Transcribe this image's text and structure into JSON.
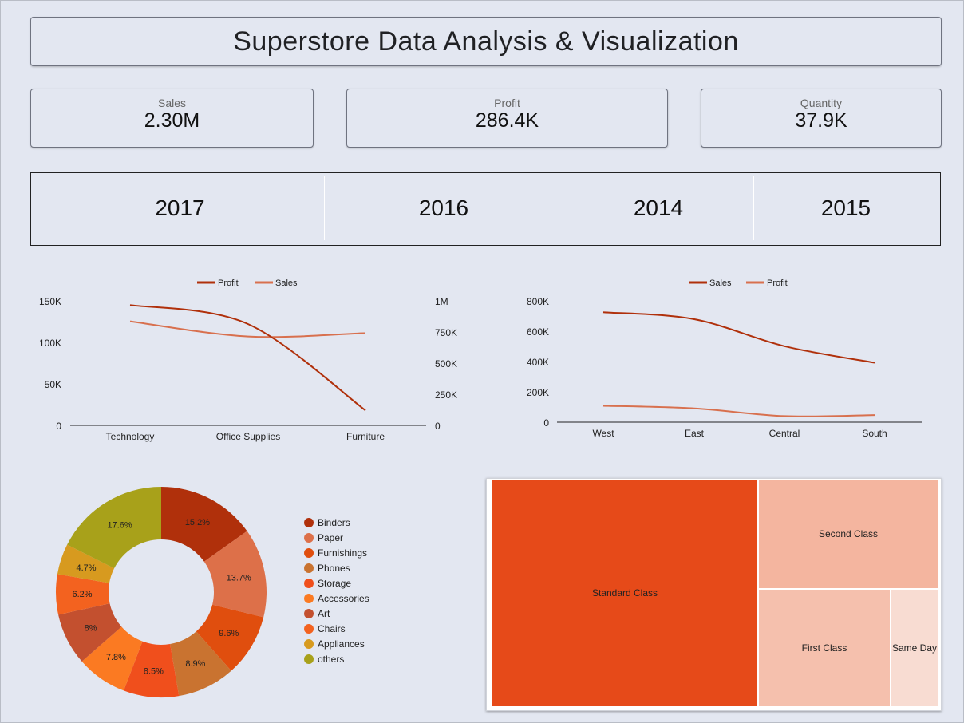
{
  "title": "Superstore Data Analysis & Visualization",
  "kpis": [
    {
      "label": "Sales",
      "value": "2.30M"
    },
    {
      "label": "Profit",
      "value": "286.4K"
    },
    {
      "label": "Quantity",
      "value": "37.9K"
    }
  ],
  "years": [
    "2017",
    "2016",
    "2014",
    "2015"
  ],
  "colors": {
    "profit_line": "#b0300b",
    "sales_line": "#d8704e",
    "background": "#e3e7f1"
  },
  "chart_data": [
    {
      "type": "line",
      "categories": [
        "Technology",
        "Office Supplies",
        "Furniture"
      ],
      "series": [
        {
          "name": "Profit",
          "axis": "left",
          "values": [
            145000,
            122000,
            18000
          ]
        },
        {
          "name": "Sales",
          "axis": "right",
          "values": [
            836000,
            714000,
            741000
          ]
        }
      ],
      "y_left": {
        "ticks": [
          "150K",
          "100K",
          "50K",
          "0"
        ],
        "range": [
          0,
          150000
        ]
      },
      "y_right": {
        "ticks": [
          "1M",
          "750K",
          "500K",
          "250K",
          "0"
        ],
        "range": [
          0,
          1000000
        ]
      },
      "legend": "top-center"
    },
    {
      "type": "line",
      "categories": [
        "West",
        "East",
        "Central",
        "South"
      ],
      "series": [
        {
          "name": "Sales",
          "values": [
            725000,
            679000,
            501000,
            392000
          ]
        },
        {
          "name": "Profit",
          "values": [
            108000,
            91000,
            40000,
            47000
          ]
        }
      ],
      "y": {
        "ticks": [
          "800K",
          "600K",
          "400K",
          "200K",
          "0"
        ],
        "range": [
          0,
          800000
        ]
      },
      "legend": "top-center"
    },
    {
      "type": "pie",
      "donut": true,
      "slices": [
        {
          "label": "Binders",
          "value": 15.2,
          "text": "15.2%",
          "color": "#b0300b"
        },
        {
          "label": "Paper",
          "value": 13.7,
          "text": "13.7%",
          "color": "#dd7049"
        },
        {
          "label": "Furnishings",
          "value": 9.6,
          "text": "9.6%",
          "color": "#e04e0e"
        },
        {
          "label": "Phones",
          "value": 8.9,
          "text": "8.9%",
          "color": "#c97330"
        },
        {
          "label": "Storage",
          "value": 8.5,
          "text": "8.5%",
          "color": "#f04f1c"
        },
        {
          "label": "Accessories",
          "value": 7.8,
          "text": "7.8%",
          "color": "#fb7a22"
        },
        {
          "label": "Art",
          "value": 8.0,
          "text": "8%",
          "color": "#c3502f"
        },
        {
          "label": "Chairs",
          "value": 6.2,
          "text": "6.2%",
          "color": "#f3621f"
        },
        {
          "label": "Appliances",
          "value": 4.7,
          "text": "4.7%",
          "color": "#d79a1f"
        },
        {
          "label": "others",
          "value": 17.6,
          "text": "17.6%",
          "color": "#a8a11a"
        }
      ],
      "legend": "right"
    },
    {
      "type": "treemap",
      "items": [
        {
          "label": "Standard Class",
          "color": "#e64a19"
        },
        {
          "label": "Second Class",
          "color": "#f4b59f"
        },
        {
          "label": "First Class",
          "color": "#f5c0ad"
        },
        {
          "label": "Same Day",
          "color": "#f8dcd2"
        }
      ]
    }
  ]
}
